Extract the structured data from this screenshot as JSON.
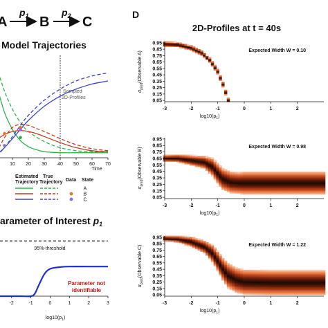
{
  "panel_left": {
    "scheme": {
      "node_a": "A",
      "node_b": "B",
      "node_c": "C",
      "rate_1": "p",
      "rate_1_sub": "1",
      "rate_2": "p",
      "rate_2_sub": "2"
    },
    "traj_title": "Model Trajectories",
    "sampled_label_1": "Sampled",
    "sampled_label_2": "2D-Profiles",
    "time_label": "Time",
    "legend": {
      "estimated": "Estimated",
      "estimated_2": "Trajectory",
      "true": "True",
      "true_2": "Trajectory",
      "data": "Data",
      "state": "State",
      "states": [
        "A",
        "B",
        "C"
      ]
    },
    "param_title": "arameter of Interest",
    "param_symbol": "p",
    "param_symbol_sub": "1",
    "threshold_label": "95%-threshold",
    "not_identifiable_1": "Parameter not",
    "not_identifiable_2": "identifiable",
    "param_xlabel_main": "log10(p",
    "param_xlabel_sub": "1",
    "param_xlabel_end": ")"
  },
  "panel_right": {
    "panel_letter": "D",
    "title": "2D-Profiles at t = 40s",
    "xlabel_main": "log10(p",
    "xlabel_sub": "1",
    "xlabel_end": ")",
    "subplots": [
      {
        "ylabel_pre": "α",
        "ylabel_sub": "pred",
        "ylabel_obs": "(Observable A)",
        "width_label": "Expected Width W = 0.10"
      },
      {
        "ylabel_pre": "α",
        "ylabel_sub": "pred",
        "ylabel_obs": "(Observable B)",
        "width_label": "Expected Width W = 0.98"
      },
      {
        "ylabel_pre": "α",
        "ylabel_sub": "pred",
        "ylabel_obs": "(Observable C)",
        "width_label": "Expected Width W = 1.22"
      }
    ]
  },
  "colors": {
    "green": "#2fb24a",
    "red": "#c23a1e",
    "blue": "#3a45c8",
    "data_orange": "#e07a2a",
    "data_purple": "#8a6fd6",
    "profile_dark": "#1a0a04",
    "profile_mid": "#c8502a",
    "profile_light": "#f7a06e",
    "curve_blue": "#1f2fd0"
  },
  "chart_data": [
    {
      "type": "line",
      "x_ticks": [
        "10",
        "20",
        "30",
        "40",
        "50",
        "60",
        "70"
      ],
      "xlim": [
        0,
        70
      ],
      "ylim": [
        0,
        1
      ],
      "series": [
        {
          "kind": "estimated",
          "state": "A",
          "x": [
            0,
            5,
            10,
            15,
            20,
            25,
            30,
            40,
            50,
            60,
            70
          ],
          "y": [
            0.72,
            0.45,
            0.28,
            0.17,
            0.11,
            0.08,
            0.06,
            0.05,
            0.05,
            0.05,
            0.05
          ]
        },
        {
          "kind": "true",
          "state": "A",
          "x": [
            0,
            5,
            10,
            15,
            20,
            30,
            40,
            50,
            60,
            70
          ],
          "y": [
            0.9,
            0.66,
            0.48,
            0.35,
            0.26,
            0.16,
            0.1,
            0.07,
            0.06,
            0.05
          ]
        },
        {
          "kind": "estimated",
          "state": "B",
          "x": [
            0,
            5,
            10,
            15,
            20,
            25,
            30,
            40,
            50,
            60,
            70
          ],
          "y": [
            0.18,
            0.23,
            0.26,
            0.27,
            0.26,
            0.24,
            0.21,
            0.15,
            0.1,
            0.07,
            0.06
          ]
        },
        {
          "kind": "true",
          "state": "B",
          "x": [
            0,
            5,
            10,
            15,
            20,
            25,
            30,
            40,
            50,
            60,
            70
          ],
          "y": [
            0.05,
            0.2,
            0.3,
            0.33,
            0.32,
            0.29,
            0.26,
            0.19,
            0.13,
            0.09,
            0.07
          ]
        },
        {
          "kind": "estimated",
          "state": "C",
          "x": [
            0,
            5,
            10,
            15,
            20,
            30,
            40,
            50,
            60,
            70
          ],
          "y": [
            0.03,
            0.1,
            0.19,
            0.28,
            0.37,
            0.51,
            0.61,
            0.68,
            0.73,
            0.76
          ]
        },
        {
          "kind": "true",
          "state": "C",
          "x": [
            0,
            5,
            10,
            15,
            20,
            30,
            40,
            50,
            60,
            70
          ],
          "y": [
            0.02,
            0.1,
            0.21,
            0.32,
            0.42,
            0.57,
            0.68,
            0.76,
            0.81,
            0.84
          ]
        }
      ],
      "data_points": [
        {
          "state": "B",
          "x": 5,
          "y": 0.24
        },
        {
          "state": "C",
          "x": 5,
          "y": 0.12
        },
        {
          "state": "B",
          "x": 15,
          "y": 0.3
        },
        {
          "state": "A",
          "x": 15,
          "y": 0.2
        },
        {
          "state": "C",
          "x": 15,
          "y": 0.28
        }
      ],
      "vline_x": 40
    },
    {
      "type": "line",
      "x_ticks": [
        "-2",
        "-1",
        "0",
        "1",
        "2",
        "3"
      ],
      "xlim": [
        -2.6,
        3
      ],
      "threshold": 0.95,
      "series": [
        {
          "name": "",
          "x": [
            -2.6,
            -1.5,
            -1.0,
            -0.8,
            -0.6,
            -0.3,
            0,
            0.5,
            1,
            2,
            3
          ],
          "y": [
            0,
            0,
            0,
            0.04,
            0.18,
            0.38,
            0.47,
            0.5,
            0.51,
            0.51,
            0.51
          ]
        }
      ]
    },
    {
      "type": "heatmap",
      "observable": "A",
      "x_ticks": [
        "-3",
        "-2",
        "-1",
        "0",
        "1",
        "2"
      ],
      "y_ticks": [
        "0.95",
        "0.85",
        "0.75",
        "0.65",
        "0.55",
        "0.45",
        "0.35",
        "0.25",
        "0.15",
        "0.05"
      ],
      "xlim": [
        -3,
        3
      ],
      "ylim": [
        0.03,
        0.97
      ],
      "ridge_x": [
        -3,
        -2.5,
        -2,
        -1.6,
        -1.3,
        -1.0,
        -0.8,
        -0.6
      ],
      "ridge_y": [
        0.93,
        0.92,
        0.87,
        0.79,
        0.68,
        0.5,
        0.3,
        0.05
      ],
      "band_width": [
        0.04,
        0.04,
        0.04,
        0.04,
        0.04,
        0.04,
        0.04,
        0.04
      ]
    },
    {
      "type": "heatmap",
      "observable": "B",
      "x_ticks": [
        "-3",
        "-2",
        "-1",
        "0",
        "1",
        "2"
      ],
      "y_ticks": [
        "0.95",
        "0.85",
        "0.75",
        "0.65",
        "0.55",
        "0.45",
        "0.35",
        "0.25",
        "0.15",
        "0.05"
      ],
      "xlim": [
        -3,
        3
      ],
      "ylim": [
        0.03,
        0.97
      ],
      "ridge_x": [
        -3,
        -2.5,
        -2,
        -1.5,
        -1.2,
        -1.0,
        -0.8,
        -0.5,
        -0.2,
        0,
        1,
        2,
        3
      ],
      "ridge_y": [
        0.65,
        0.65,
        0.62,
        0.59,
        0.52,
        0.42,
        0.33,
        0.28,
        0.27,
        0.27,
        0.27,
        0.27,
        0.27
      ],
      "band_width": [
        0.05,
        0.06,
        0.08,
        0.1,
        0.14,
        0.16,
        0.17,
        0.17,
        0.17,
        0.18,
        0.18,
        0.18,
        0.18
      ]
    },
    {
      "type": "heatmap",
      "observable": "C",
      "x_ticks": [
        "-3",
        "-2",
        "-1",
        "0",
        "1",
        "2"
      ],
      "y_ticks": [
        "0.95",
        "0.85",
        "0.75",
        "0.65",
        "0.55",
        "0.45",
        "0.35",
        "0.25",
        "0.15",
        "0.05"
      ],
      "xlim": [
        -3,
        3
      ],
      "ylim": [
        0.03,
        0.97
      ],
      "ridge_x": [
        -3,
        -2.5,
        -2,
        -1.5,
        -1.2,
        -1.0,
        -0.8,
        -0.6,
        -0.3,
        0,
        1,
        2,
        3
      ],
      "ridge_y": [
        0.93,
        0.92,
        0.88,
        0.8,
        0.7,
        0.58,
        0.45,
        0.35,
        0.28,
        0.25,
        0.24,
        0.24,
        0.24
      ],
      "band_width": [
        0.04,
        0.05,
        0.08,
        0.1,
        0.14,
        0.16,
        0.18,
        0.2,
        0.2,
        0.2,
        0.2,
        0.2,
        0.2
      ]
    }
  ]
}
